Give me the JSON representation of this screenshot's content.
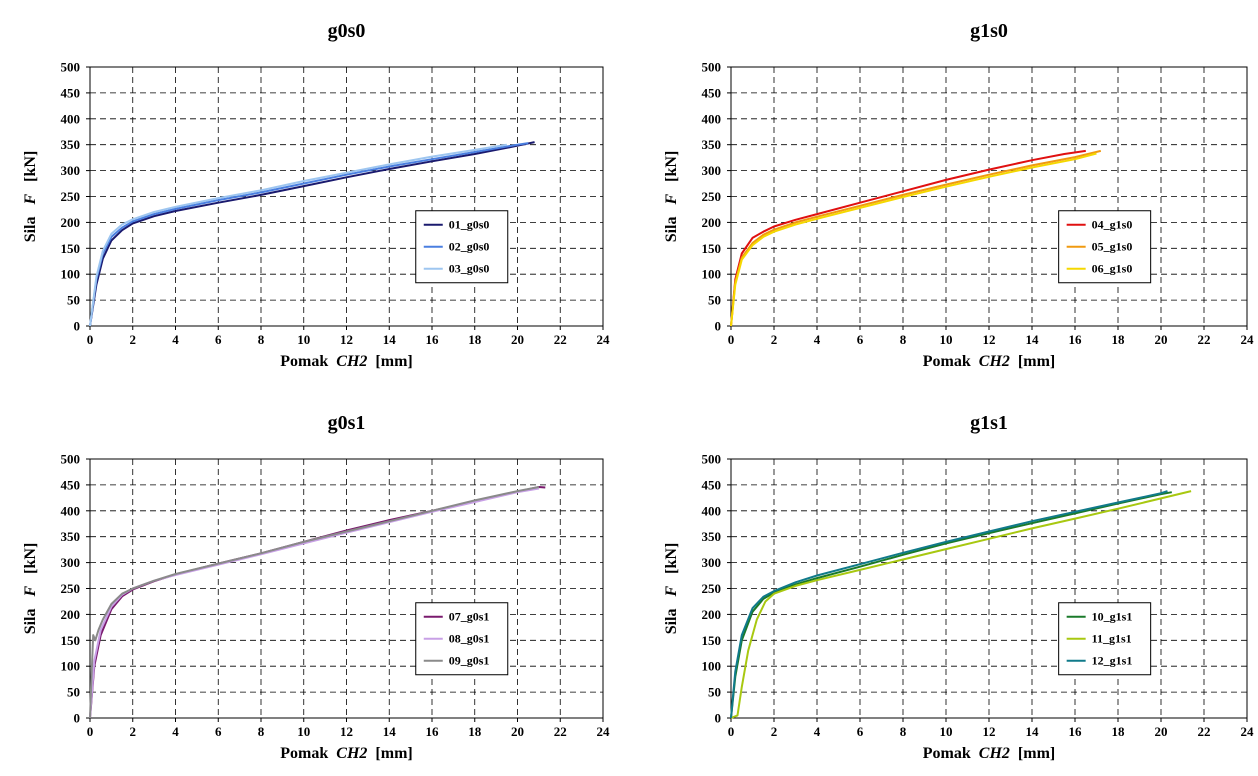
{
  "chart_data": [
    {
      "type": "line",
      "title": "g0s0",
      "xlabel_parts": [
        "Pomak",
        "CH2",
        "[mm]"
      ],
      "ylabel_parts": [
        "Sila",
        "F",
        "[kN]"
      ],
      "xlim": [
        0,
        24
      ],
      "ylim": [
        0,
        500
      ],
      "xticks": [
        0,
        2,
        4,
        6,
        8,
        10,
        12,
        14,
        16,
        18,
        20,
        22,
        24
      ],
      "yticks": [
        0,
        50,
        100,
        150,
        200,
        250,
        300,
        350,
        400,
        450,
        500
      ],
      "grid": true,
      "legend_position": "center-right",
      "series": [
        {
          "name": "01_g0s0",
          "color": "#1a1a6e",
          "x": [
            0,
            0.3,
            0.6,
            1.0,
            1.5,
            2,
            3,
            4,
            6,
            8,
            10,
            12,
            14,
            16,
            18,
            20,
            20.8
          ],
          "y": [
            0,
            80,
            130,
            165,
            185,
            198,
            212,
            222,
            238,
            253,
            270,
            287,
            303,
            318,
            332,
            348,
            355
          ]
        },
        {
          "name": "02_g0s0",
          "color": "#4a7fe0",
          "x": [
            0,
            0.3,
            0.6,
            1.0,
            1.5,
            2,
            3,
            4,
            6,
            8,
            10,
            12,
            14,
            16,
            18,
            20,
            20.5
          ],
          "y": [
            0,
            90,
            140,
            172,
            190,
            202,
            216,
            226,
            243,
            258,
            275,
            292,
            308,
            322,
            336,
            350,
            353
          ]
        },
        {
          "name": "03_g0s0",
          "color": "#9ec6f0",
          "x": [
            0,
            0.3,
            0.6,
            1.0,
            1.5,
            2,
            3,
            4,
            6,
            8,
            10,
            12,
            14,
            16,
            18,
            19.5
          ],
          "y": [
            0,
            95,
            145,
            178,
            196,
            206,
            220,
            230,
            247,
            262,
            280,
            296,
            312,
            327,
            340,
            350
          ]
        }
      ]
    },
    {
      "type": "line",
      "title": "g1s0",
      "xlabel_parts": [
        "Pomak",
        "CH2",
        "[mm]"
      ],
      "ylabel_parts": [
        "Sila",
        "F",
        "[kN]"
      ],
      "xlim": [
        0,
        24
      ],
      "ylim": [
        0,
        500
      ],
      "xticks": [
        0,
        2,
        4,
        6,
        8,
        10,
        12,
        14,
        16,
        18,
        20,
        22,
        24
      ],
      "yticks": [
        0,
        50,
        100,
        150,
        200,
        250,
        300,
        350,
        400,
        450,
        500
      ],
      "grid": true,
      "legend_position": "center-right",
      "series": [
        {
          "name": "04_g1s0",
          "color": "#e01010",
          "x": [
            0,
            0.2,
            0.5,
            1.0,
            1.5,
            2,
            3,
            4,
            6,
            8,
            10,
            12,
            14,
            15.5,
            16.5
          ],
          "y": [
            0,
            90,
            140,
            170,
            182,
            192,
            205,
            216,
            238,
            260,
            282,
            302,
            320,
            332,
            338
          ]
        },
        {
          "name": "05_g1s0",
          "color": "#f09a10",
          "x": [
            0,
            0.2,
            0.5,
            1.0,
            1.5,
            2,
            3,
            4,
            6,
            8,
            10,
            12,
            14,
            16,
            17.2
          ],
          "y": [
            0,
            85,
            132,
            160,
            176,
            186,
            200,
            211,
            232,
            253,
            273,
            292,
            310,
            326,
            338
          ]
        },
        {
          "name": "06_g1s0",
          "color": "#f5d800",
          "x": [
            0,
            0.2,
            0.5,
            1.0,
            1.5,
            2,
            3,
            4,
            6,
            8,
            10,
            12,
            14,
            16,
            17.0
          ],
          "y": [
            0,
            80,
            128,
            156,
            172,
            182,
            196,
            207,
            228,
            249,
            269,
            288,
            306,
            322,
            333
          ]
        }
      ]
    },
    {
      "type": "line",
      "title": "g0s1",
      "xlabel_parts": [
        "Pomak",
        "CH2",
        "[mm]"
      ],
      "ylabel_parts": [
        "Sila",
        "F",
        "[kN]"
      ],
      "xlim": [
        0,
        24
      ],
      "ylim": [
        0,
        500
      ],
      "xticks": [
        0,
        2,
        4,
        6,
        8,
        10,
        12,
        14,
        16,
        18,
        20,
        22,
        24
      ],
      "yticks": [
        0,
        50,
        100,
        150,
        200,
        250,
        300,
        350,
        400,
        450,
        500
      ],
      "grid": true,
      "legend_position": "center-right",
      "series": [
        {
          "name": "07_g0s1",
          "color": "#7a1a6e",
          "x": [
            0,
            0.2,
            0.5,
            1.0,
            1.5,
            2,
            3,
            4,
            6,
            8,
            10,
            12,
            14,
            16,
            18,
            20,
            21,
            21.3
          ],
          "y": [
            0,
            100,
            160,
            210,
            235,
            248,
            264,
            277,
            298,
            318,
            340,
            362,
            382,
            400,
            418,
            437,
            446,
            445
          ]
        },
        {
          "name": "08_g0s1",
          "color": "#c8a0e6",
          "x": [
            0,
            0.2,
            0.5,
            1.0,
            1.5,
            2,
            3,
            4,
            6,
            8,
            10,
            12,
            14,
            16,
            18,
            20,
            21
          ],
          "y": [
            0,
            110,
            170,
            215,
            238,
            250,
            265,
            276,
            296,
            316,
            337,
            358,
            378,
            398,
            417,
            436,
            443
          ]
        },
        {
          "name": "09_g0s1",
          "color": "#8a8a8a",
          "x": [
            0,
            0.05,
            0.15,
            0.25,
            0.4,
            0.6,
            1.0,
            1.5,
            2,
            3,
            4,
            6,
            8,
            10,
            12,
            14,
            16,
            18,
            20,
            21
          ],
          "y": [
            0,
            60,
            160,
            150,
            170,
            190,
            220,
            240,
            250,
            265,
            278,
            298,
            318,
            340,
            360,
            380,
            400,
            420,
            438,
            446
          ]
        }
      ]
    },
    {
      "type": "line",
      "title": "g1s1",
      "xlabel_parts": [
        "Pomak",
        "CH2",
        "[mm]"
      ],
      "ylabel_parts": [
        "Sila",
        "F",
        "[kN]"
      ],
      "xlim": [
        0,
        24
      ],
      "ylim": [
        0,
        500
      ],
      "xticks": [
        0,
        2,
        4,
        6,
        8,
        10,
        12,
        14,
        16,
        18,
        20,
        22,
        24
      ],
      "yticks": [
        0,
        50,
        100,
        150,
        200,
        250,
        300,
        350,
        400,
        450,
        500
      ],
      "grid": true,
      "legend_position": "center-right",
      "series": [
        {
          "name": "10_g1s1",
          "color": "#1a7a2a",
          "x": [
            0,
            0.2,
            0.5,
            1.0,
            1.5,
            2,
            3,
            4,
            6,
            8,
            10,
            12,
            14,
            16,
            18,
            20,
            20.5
          ],
          "y": [
            0,
            80,
            150,
            205,
            230,
            242,
            258,
            270,
            292,
            315,
            337,
            357,
            376,
            395,
            414,
            432,
            436
          ]
        },
        {
          "name": "11_g1s1",
          "color": "#a8c810",
          "x": [
            0,
            0.3,
            0.5,
            0.8,
            1.2,
            1.6,
            2,
            3,
            4,
            6,
            8,
            10,
            12,
            14,
            16,
            18,
            20,
            21.4
          ],
          "y": [
            0,
            5,
            60,
            130,
            190,
            225,
            240,
            255,
            266,
            286,
            306,
            326,
            346,
            366,
            385,
            404,
            424,
            438
          ]
        },
        {
          "name": "12_g1s1",
          "color": "#107a8a",
          "x": [
            0,
            0.2,
            0.5,
            1.0,
            1.5,
            2,
            3,
            4,
            6,
            8,
            10,
            12,
            14,
            16,
            18,
            20,
            20.3
          ],
          "y": [
            0,
            90,
            160,
            212,
            234,
            245,
            262,
            275,
            297,
            319,
            340,
            360,
            380,
            398,
            416,
            434,
            438
          ]
        }
      ]
    }
  ]
}
